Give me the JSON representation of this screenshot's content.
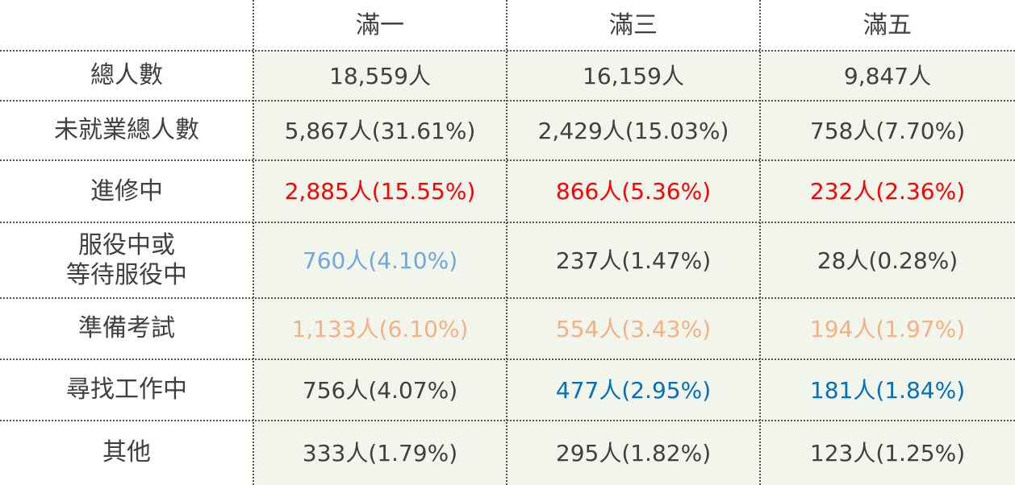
{
  "chart_data": {
    "type": "table",
    "columns": [
      "",
      "滿一",
      "滿三",
      "滿五"
    ],
    "rows": [
      {
        "label": "總人數",
        "cells": [
          "18,559人",
          "16,159人",
          "9,847人"
        ]
      },
      {
        "label": "未就業總人數",
        "cells": [
          "5,867人(31.61%)",
          "2,429人(15.03%)",
          "758人(7.70%)"
        ]
      },
      {
        "label": "進修中",
        "cells": [
          "2,885人(15.55%)",
          "866人(5.36%)",
          "232人(2.36%)"
        ]
      },
      {
        "label_lines": [
          "服役中或",
          "等待服役中"
        ],
        "cells": [
          "760人(4.10%)",
          "237人(1.47%)",
          "28人(0.28%)"
        ]
      },
      {
        "label": "準備考試",
        "cells": [
          "1,133人(6.10%)",
          "554人(3.43%)",
          "194人(1.97%)"
        ]
      },
      {
        "label": "尋找工作中",
        "cells": [
          "756人(4.07%)",
          "477人(2.95%)",
          "181人(1.84%)"
        ]
      },
      {
        "label": "其他",
        "cells": [
          "333人(1.79%)",
          "295人(1.82%)",
          "123人(1.25%)"
        ]
      }
    ]
  },
  "colors": {
    "default_text": "#404040",
    "red": "#ff0000",
    "light_blue": "#6fa8dc",
    "peach": "#f4b183",
    "blue": "#0070c0",
    "shade": "#f1f5ec",
    "gridline": "#555555"
  },
  "cell_colors": [
    [
      "default_text",
      "default_text",
      "default_text"
    ],
    [
      "default_text",
      "default_text",
      "default_text"
    ],
    [
      "red",
      "red",
      "red"
    ],
    [
      "light_blue",
      "default_text",
      "default_text"
    ],
    [
      "peach",
      "peach",
      "peach"
    ],
    [
      "default_text",
      "blue",
      "blue"
    ],
    [
      "default_text",
      "default_text",
      "default_text"
    ]
  ]
}
